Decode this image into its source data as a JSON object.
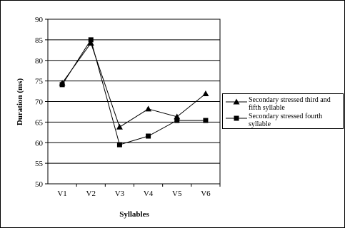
{
  "chart_data": {
    "type": "line",
    "categories": [
      "V1",
      "V2",
      "V3",
      "V4",
      "V5",
      "V6"
    ],
    "xlabel": "Syllables",
    "ylabel": "Duration (ms)",
    "ylim": [
      50,
      90
    ],
    "yticks": [
      50,
      55,
      60,
      65,
      70,
      75,
      80,
      85,
      90
    ],
    "grid": true,
    "legend_position": "right",
    "series": [
      {
        "name": "Secondary stressed third and fifth syllable",
        "marker": "triangle",
        "values": [
          74.5,
          84.2,
          63.8,
          68.2,
          66.3,
          71.9
        ]
      },
      {
        "name": "Secondary stressed fourth syllable",
        "marker": "square",
        "values": [
          74.1,
          85.0,
          59.5,
          61.6,
          65.4,
          65.4
        ]
      }
    ]
  }
}
